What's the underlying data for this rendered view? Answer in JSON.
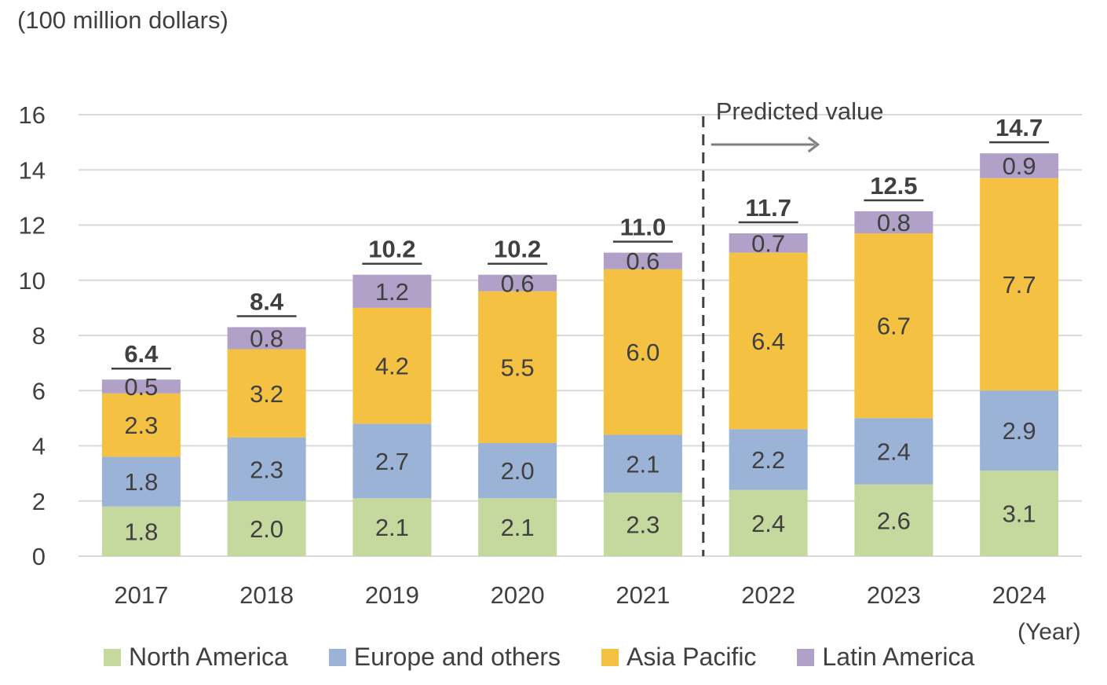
{
  "chart_data": {
    "type": "bar",
    "stacked": true,
    "unit_label": "(100 million dollars)",
    "x_unit_label": "(Year)",
    "categories": [
      "2017",
      "2018",
      "2019",
      "2020",
      "2021",
      "2022",
      "2023",
      "2024"
    ],
    "series": [
      {
        "name": "North America",
        "color": "#c5d89d",
        "values": [
          1.8,
          2.0,
          2.1,
          2.1,
          2.3,
          2.4,
          2.6,
          3.1
        ]
      },
      {
        "name": "Europe and others",
        "color": "#9bb3d7",
        "values": [
          1.8,
          2.3,
          2.7,
          2.0,
          2.1,
          2.2,
          2.4,
          2.9
        ]
      },
      {
        "name": "Asia Pacific",
        "color": "#f4c142",
        "values": [
          2.3,
          3.2,
          4.2,
          5.5,
          6.0,
          6.4,
          6.7,
          7.7
        ]
      },
      {
        "name": "Latin America",
        "color": "#b1a0c7",
        "values": [
          0.5,
          0.8,
          1.2,
          0.6,
          0.6,
          0.7,
          0.8,
          0.9
        ]
      }
    ],
    "totals": [
      "6.4",
      "8.4",
      "10.2",
      "10.2",
      "11.0",
      "11.7",
      "12.5",
      "14.7"
    ],
    "ylim": [
      0,
      16
    ],
    "yticks": [
      0,
      2,
      4,
      6,
      8,
      10,
      12,
      14,
      16
    ],
    "grid": true,
    "legend_position": "bottom",
    "annotation": {
      "text": "Predicted value",
      "after_category": "2021"
    }
  }
}
